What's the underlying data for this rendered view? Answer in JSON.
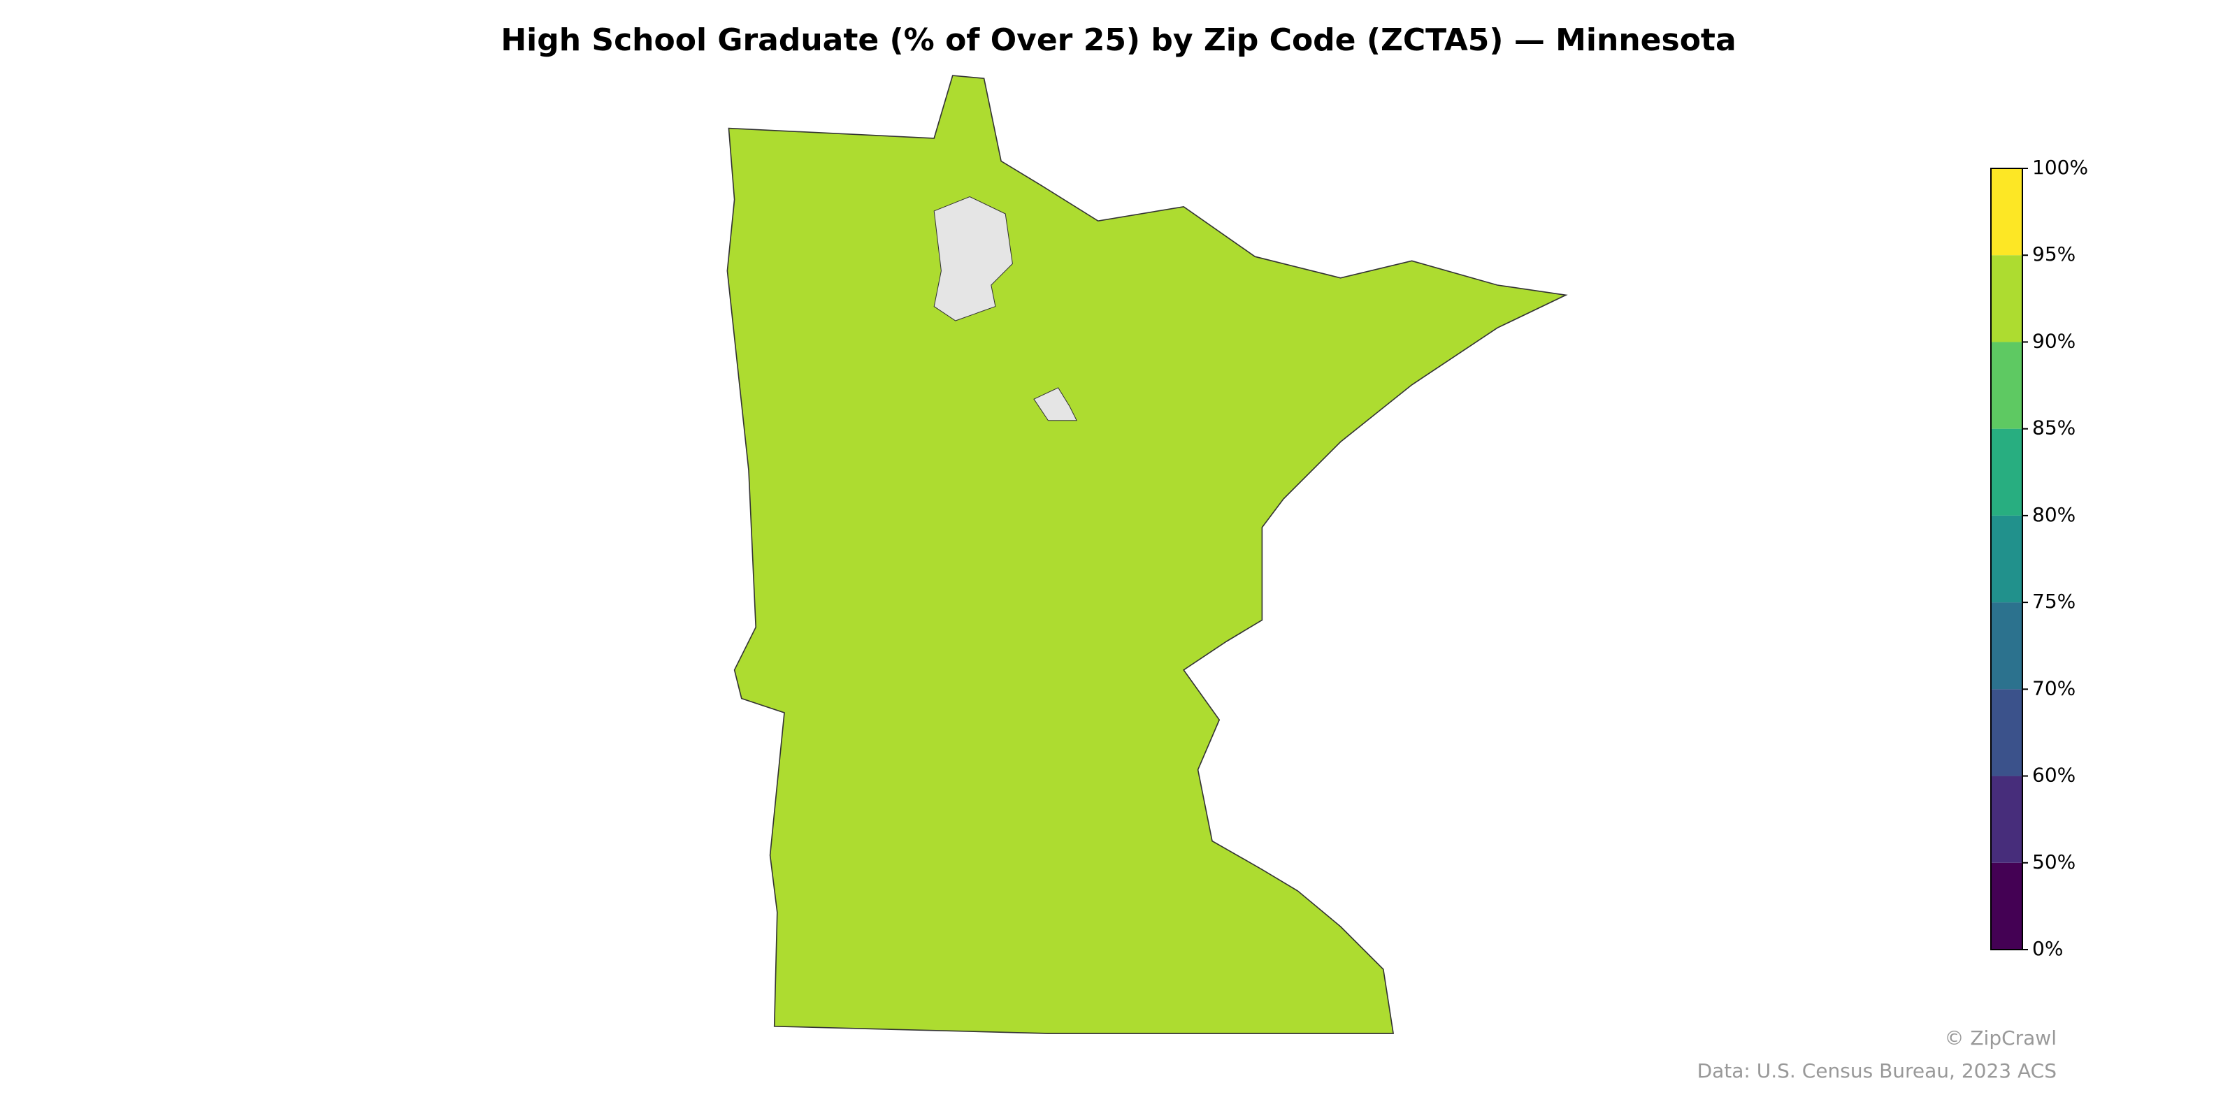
{
  "chart_data": {
    "type": "choropleth",
    "title": "High School Graduate (% of Over 25) by Zip Code (ZCTA5) — Minnesota",
    "colorbar": {
      "ticks": [
        {
          "value": 0,
          "label": "0%"
        },
        {
          "value": 50,
          "label": "50%"
        },
        {
          "value": 60,
          "label": "60%"
        },
        {
          "value": 70,
          "label": "70%"
        },
        {
          "value": 75,
          "label": "75%"
        },
        {
          "value": 80,
          "label": "80%"
        },
        {
          "value": 85,
          "label": "85%"
        },
        {
          "value": 90,
          "label": "90%"
        },
        {
          "value": 95,
          "label": "95%"
        },
        {
          "value": 100,
          "label": "100%"
        }
      ],
      "colors": [
        "#440154",
        "#472d7b",
        "#3b528b",
        "#2c728e",
        "#21918c",
        "#28ae80",
        "#5ec962",
        "#addc30",
        "#fde725"
      ]
    },
    "credits": [
      "© ZipCrawl",
      "Data: U.S. Census Bureau, 2023 ACS"
    ]
  }
}
